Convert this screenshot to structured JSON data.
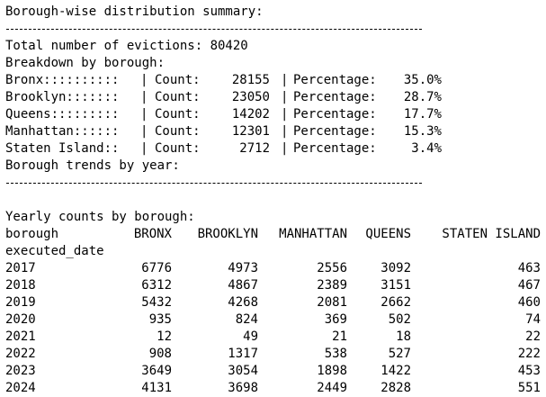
{
  "summary": {
    "title": "Borough-wise distribution summary:",
    "total_line": "Total number of evictions: 80420",
    "breakdown_heading": "Breakdown by borough:",
    "count_label": "Count:",
    "percentage_label": "Percentage:",
    "rows": [
      {
        "name": "Bronx::::::::::",
        "count": "28155",
        "percentage": "35.0%"
      },
      {
        "name": "Brooklyn:::::::",
        "count": "23050",
        "percentage": "28.7%"
      },
      {
        "name": "Queens:::::::::",
        "count": "14202",
        "percentage": "17.7%"
      },
      {
        "name": "Manhattan::::::",
        "count": "12301",
        "percentage": "15.3%"
      },
      {
        "name": "Staten Island::",
        "count": "2712",
        "percentage": "3.4%"
      }
    ],
    "trends_heading": "Borough trends by year:"
  },
  "yearly": {
    "heading": "Yearly counts by borough:",
    "index_header": "borough",
    "index_name": "executed_date",
    "columns": [
      "BRONX",
      "BROOKLYN",
      "MANHATTAN",
      "QUEENS",
      "STATEN ISLAND"
    ],
    "rows": [
      {
        "year": "2017",
        "values": [
          "6776",
          "4973",
          "2556",
          "3092",
          "463"
        ]
      },
      {
        "year": "2018",
        "values": [
          "6312",
          "4867",
          "2389",
          "3151",
          "467"
        ]
      },
      {
        "year": "2019",
        "values": [
          "5432",
          "4268",
          "2081",
          "2662",
          "460"
        ]
      },
      {
        "year": "2020",
        "values": [
          "935",
          "824",
          "369",
          "502",
          "74"
        ]
      },
      {
        "year": "2021",
        "values": [
          "12",
          "49",
          "21",
          "18",
          "22"
        ]
      },
      {
        "year": "2022",
        "values": [
          "908",
          "1317",
          "538",
          "527",
          "222"
        ]
      },
      {
        "year": "2023",
        "values": [
          "3649",
          "3054",
          "1898",
          "1422",
          "453"
        ]
      },
      {
        "year": "2024",
        "values": [
          "4131",
          "3698",
          "2449",
          "2828",
          "551"
        ]
      }
    ]
  }
}
